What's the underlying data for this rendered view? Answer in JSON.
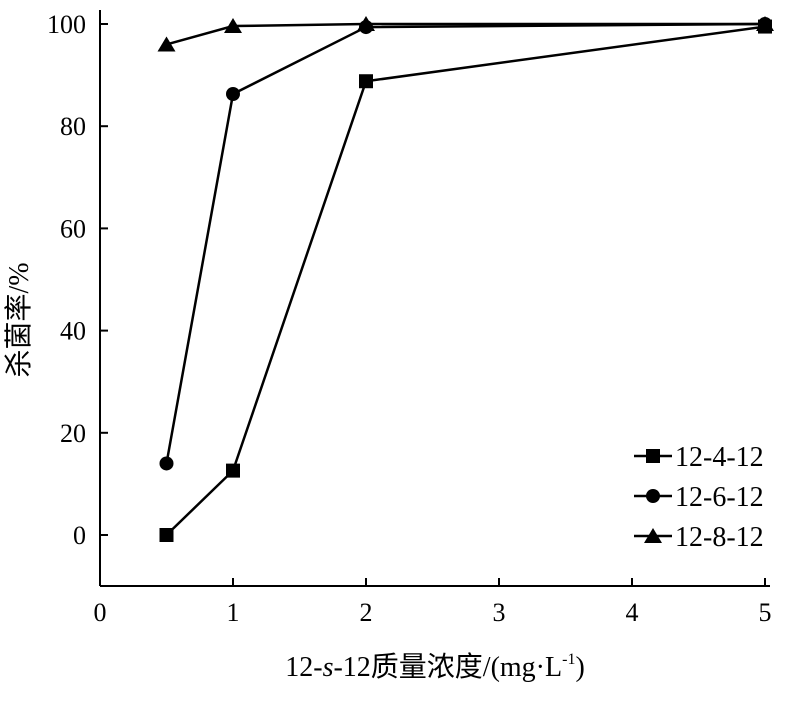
{
  "chart_data": {
    "type": "line",
    "xlabel": "12-s-12质量浓度/(mg·L-1)",
    "xlabel_parts": {
      "prefix": "12-",
      "italic": "s",
      "mid": "-12质量浓度/(mg·L",
      "sup": "-1",
      "suffix": ")"
    },
    "ylabel": "杀菌率/%",
    "xlim": [
      0,
      5
    ],
    "ylim": [
      -10,
      100
    ],
    "xticks": [
      0,
      1,
      2,
      3,
      4,
      5
    ],
    "yticks": [
      0,
      20,
      40,
      60,
      80,
      100
    ],
    "grid": false,
    "legend_position": "bottom-right",
    "x": [
      0.5,
      1,
      2,
      5
    ],
    "series": [
      {
        "name": "12-4-12",
        "marker": "square",
        "values": [
          0,
          12.6,
          88.8,
          99.5
        ]
      },
      {
        "name": "12-6-12",
        "marker": "circle",
        "values": [
          14,
          86.3,
          99.4,
          100
        ]
      },
      {
        "name": "12-8-12",
        "marker": "triangle",
        "values": [
          96,
          99.6,
          100,
          100
        ]
      }
    ],
    "color": "#000000"
  }
}
